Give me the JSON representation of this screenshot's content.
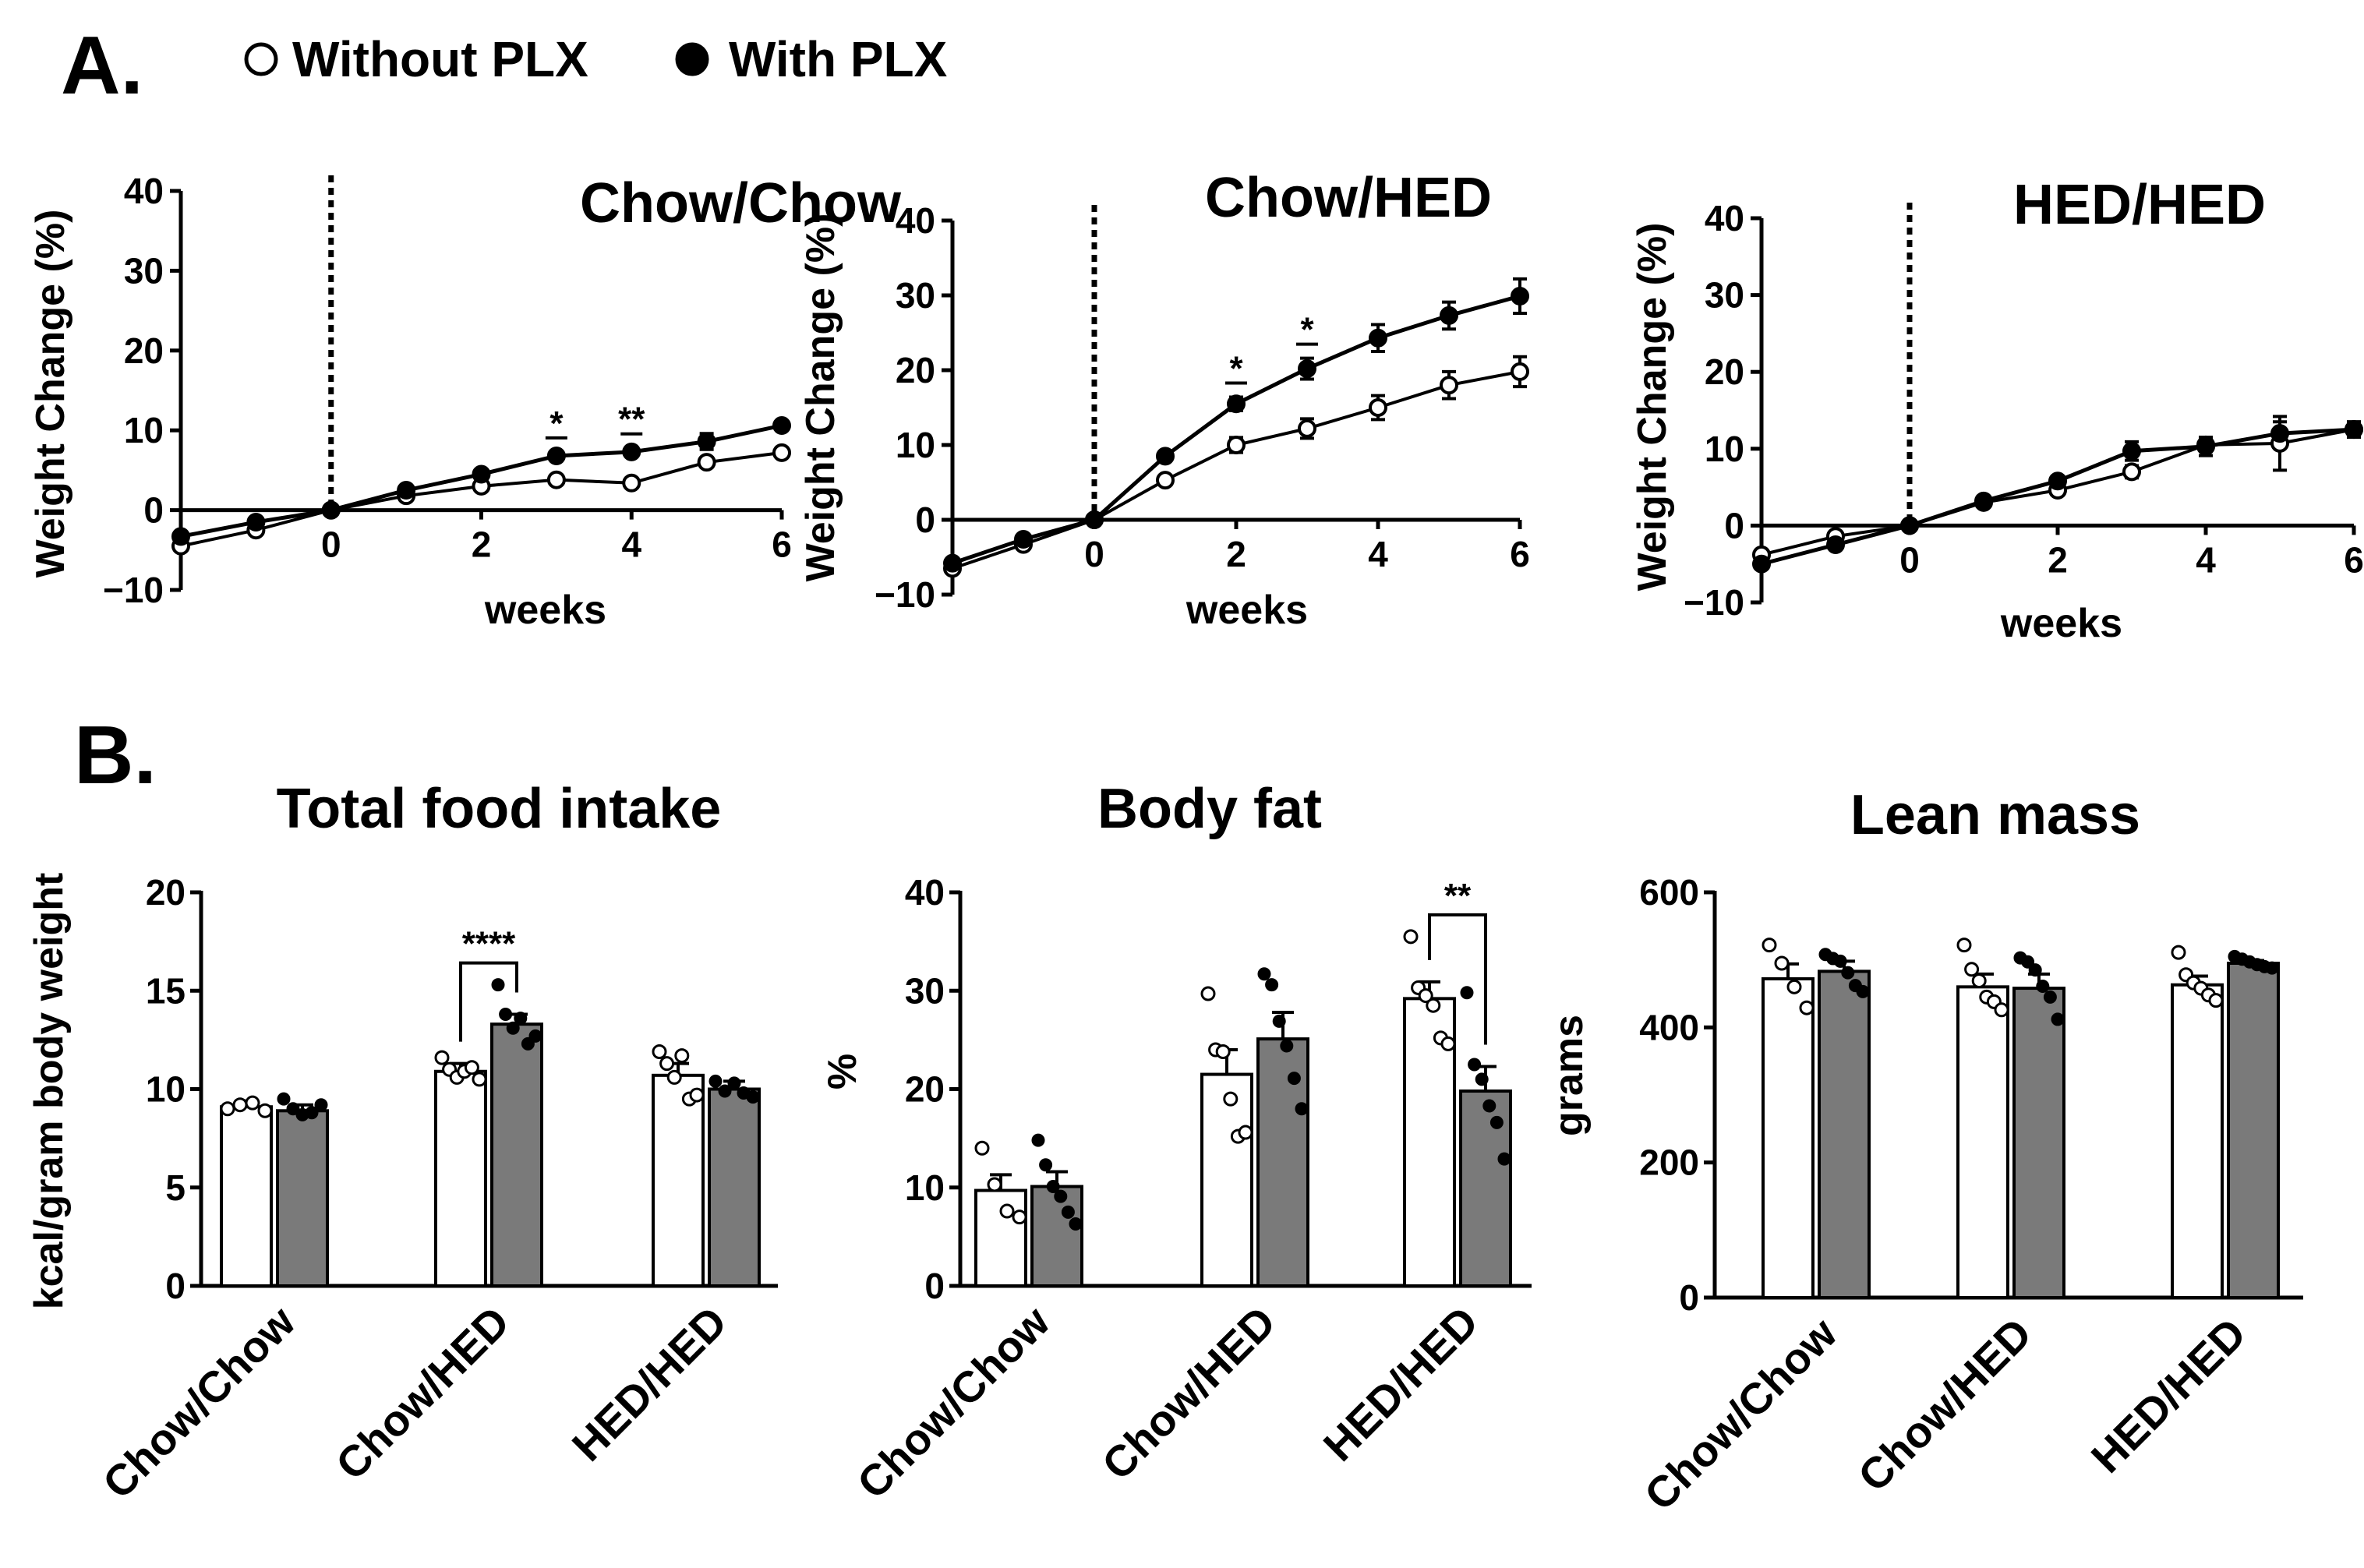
{
  "figure": {
    "panel_a_label": "A.",
    "panel_b_label": "B.",
    "legend": [
      {
        "label": "Without PLX",
        "marker": "open-circle"
      },
      {
        "label": "With PLX",
        "marker": "filled-circle"
      }
    ],
    "colors": {
      "with_bar": "#7a7a7a",
      "without_bar": "#ffffff",
      "axis": "#000000"
    }
  },
  "chart_data": [
    {
      "type": "line",
      "title": "Chow/Chow",
      "xlabel": "weeks",
      "ylabel": "Weight Change (%)",
      "xlim": [
        -2,
        6
      ],
      "ylim": [
        -10,
        40
      ],
      "xticks": [
        0,
        2,
        4,
        6
      ],
      "xtick_labels": [
        "0",
        "2",
        "4",
        "6"
      ],
      "yticks": [
        -10,
        0,
        10,
        20,
        30,
        40
      ],
      "ytick_labels": [
        "−10",
        "0",
        "10",
        "20",
        "30",
        "40"
      ],
      "vline_x": 0,
      "series": [
        {
          "name": "Without PLX",
          "x": [
            -2,
            -1,
            0,
            1,
            2,
            3,
            4,
            5,
            6
          ],
          "values": [
            -4.5,
            -2.5,
            0,
            1.8,
            3.0,
            3.8,
            3.4,
            6.0,
            7.2
          ],
          "err": [
            0.4,
            0.4,
            0,
            0.4,
            0.4,
            0.5,
            0.5,
            0.6,
            0.6
          ]
        },
        {
          "name": "With PLX",
          "x": [
            -2,
            -1,
            0,
            1,
            2,
            3,
            4,
            5,
            6
          ],
          "values": [
            -3.3,
            -1.5,
            0,
            2.5,
            4.5,
            6.8,
            7.3,
            8.6,
            10.6
          ],
          "err": [
            0.4,
            0.4,
            0,
            0.4,
            0.5,
            0.5,
            0.5,
            1.0,
            0.5
          ]
        }
      ],
      "annotations": [
        {
          "x": 3,
          "text": "*"
        },
        {
          "x": 4,
          "text": "**"
        }
      ]
    },
    {
      "type": "line",
      "title": "Chow/HED",
      "xlabel": "weeks",
      "ylabel": "Weight Change (%)",
      "xlim": [
        -2,
        6
      ],
      "ylim": [
        -10,
        40
      ],
      "xticks": [
        0,
        2,
        4,
        6
      ],
      "xtick_labels": [
        "0",
        "2",
        "4",
        "6"
      ],
      "yticks": [
        -10,
        0,
        10,
        20,
        30,
        40
      ],
      "ytick_labels": [
        "−10",
        "0",
        "10",
        "20",
        "30",
        "40"
      ],
      "vline_x": 0,
      "series": [
        {
          "name": "Without PLX",
          "x": [
            -2,
            -1,
            0,
            1,
            2,
            3,
            4,
            5,
            6
          ],
          "values": [
            -6.5,
            -3.3,
            0,
            5.3,
            10.0,
            12.2,
            15.0,
            18.0,
            19.8
          ],
          "err": [
            0.5,
            0.5,
            0,
            0.6,
            1.0,
            1.3,
            1.6,
            1.8,
            2.0
          ]
        },
        {
          "name": "With PLX",
          "x": [
            -2,
            -1,
            0,
            1,
            2,
            3,
            4,
            5,
            6
          ],
          "values": [
            -5.8,
            -2.6,
            0,
            8.5,
            15.5,
            20.2,
            24.3,
            27.3,
            29.9
          ],
          "err": [
            0.5,
            0.6,
            0,
            0.5,
            0.9,
            1.4,
            1.8,
            1.8,
            2.3
          ]
        }
      ],
      "annotations": [
        {
          "x": 2,
          "text": "*"
        },
        {
          "x": 3,
          "text": "*"
        }
      ]
    },
    {
      "type": "line",
      "title": "HED/HED",
      "xlabel": "weeks",
      "ylabel": "Weight Change (%)",
      "xlim": [
        -2,
        6
      ],
      "ylim": [
        -10,
        40
      ],
      "xticks": [
        0,
        2,
        4,
        6
      ],
      "xtick_labels": [
        "0",
        "2",
        "4",
        "6"
      ],
      "yticks": [
        -10,
        0,
        10,
        20,
        30,
        40
      ],
      "ytick_labels": [
        "−10",
        "0",
        "10",
        "20",
        "30",
        "40"
      ],
      "vline_x": 0,
      "series": [
        {
          "name": "Without PLX",
          "x": [
            -2,
            -1,
            0,
            1,
            2,
            3,
            4,
            5,
            6
          ],
          "values": [
            -3.8,
            -1.4,
            0,
            3.0,
            4.6,
            7.0,
            10.5,
            10.7,
            12.5
          ],
          "err": [
            0.4,
            0.4,
            0,
            0.4,
            0.5,
            0.8,
            0.8,
            3.5,
            1.0
          ]
        },
        {
          "name": "With PLX",
          "x": [
            -2,
            -1,
            0,
            1,
            2,
            3,
            4,
            5,
            6
          ],
          "values": [
            -5.0,
            -2.5,
            0,
            3.2,
            5.8,
            9.7,
            10.3,
            12.0,
            12.5
          ],
          "err": [
            0.4,
            0.4,
            0,
            0.4,
            0.5,
            1.2,
            1.2,
            1.5,
            1.0
          ]
        }
      ],
      "annotations": []
    },
    {
      "type": "bar",
      "title": "Total food intake",
      "ylabel": "kcal/gram body weight",
      "categories": [
        "Chow/Chow",
        "Chow/HED",
        "HED/HED"
      ],
      "ylim": [
        0,
        20
      ],
      "yticks": [
        0,
        5,
        10,
        15,
        20
      ],
      "ytick_labels": [
        "0",
        "5",
        "10",
        "15",
        "20"
      ],
      "series": [
        {
          "name": "Without PLX",
          "values": [
            9.1,
            10.9,
            10.7
          ],
          "err": [
            0.3,
            0.4,
            0.6
          ],
          "points": [
            [
              9.0,
              9.2,
              9.3,
              8.9
            ],
            [
              11.6,
              11.0,
              10.6,
              10.9,
              11.1,
              10.5
            ],
            [
              11.9,
              11.3,
              10.6,
              11.7,
              9.5,
              9.7
            ]
          ]
        },
        {
          "name": "With PLX",
          "values": [
            8.9,
            13.3,
            10.0
          ],
          "err": [
            0.3,
            0.5,
            0.4
          ],
          "points": [
            [
              9.5,
              9.0,
              8.7,
              8.8,
              9.2
            ],
            [
              15.3,
              13.8,
              13.1,
              13.6,
              12.3,
              12.7
            ],
            [
              10.4,
              9.9,
              10.3,
              9.8,
              9.6
            ]
          ]
        }
      ],
      "comparisons": [
        {
          "category": "Chow/HED",
          "text": "****"
        }
      ]
    },
    {
      "type": "bar",
      "title": "Body fat",
      "ylabel": "%",
      "categories": [
        "Chow/Chow",
        "Chow/HED",
        "HED/HED"
      ],
      "ylim": [
        0,
        40
      ],
      "yticks": [
        0,
        10,
        20,
        30,
        40
      ],
      "ytick_labels": [
        "0",
        "10",
        "20",
        "30",
        "40"
      ],
      "series": [
        {
          "name": "Without PLX",
          "values": [
            9.7,
            21.5,
            29.2
          ],
          "err": [
            1.6,
            2.5,
            1.7
          ],
          "points": [
            [
              14.0,
              10.3,
              7.6,
              7.0
            ],
            [
              29.7,
              24.0,
              23.8,
              19.0,
              15.2,
              15.6
            ],
            [
              35.5,
              30.3,
              29.5,
              28.5,
              25.2,
              24.6
            ]
          ]
        },
        {
          "name": "With PLX",
          "values": [
            10.1,
            25.1,
            19.8
          ],
          "err": [
            1.5,
            2.7,
            2.5
          ],
          "points": [
            [
              14.8,
              12.3,
              10.1,
              9.1,
              7.5,
              6.3
            ],
            [
              31.7,
              30.6,
              26.9,
              24.4,
              21.1,
              18.0
            ],
            [
              29.8,
              22.5,
              21.0,
              18.3,
              16.6,
              12.9
            ]
          ]
        }
      ],
      "comparisons": [
        {
          "category": "HED/HED",
          "text": "**"
        }
      ]
    },
    {
      "type": "bar",
      "title": "Lean mass",
      "ylabel": "grams",
      "categories": [
        "Chow/Chow",
        "Chow/HED",
        "HED/HED"
      ],
      "ylim": [
        0,
        600
      ],
      "yticks": [
        0,
        200,
        400,
        600
      ],
      "ytick_labels": [
        "0",
        "200",
        "400",
        "600"
      ],
      "series": [
        {
          "name": "Without PLX",
          "values": [
            472,
            460,
            463
          ],
          "err": [
            22,
            19,
            13
          ],
          "points": [
            [
              522,
              495,
              460,
              429
            ],
            [
              522,
              486,
              469,
              445,
              438,
              426
            ],
            [
              511,
              478,
              466,
              458,
              448,
              440
            ]
          ]
        },
        {
          "name": "With PLX",
          "values": [
            483,
            458,
            495
          ],
          "err": [
            15,
            21,
            4
          ],
          "points": [
            [
              508,
              502,
              498,
              481,
              462,
              453
            ],
            [
              503,
              497,
              485,
              461,
              445,
              412
            ],
            [
              505,
              501,
              497,
              493,
              490,
              488
            ]
          ]
        }
      ],
      "comparisons": []
    }
  ]
}
